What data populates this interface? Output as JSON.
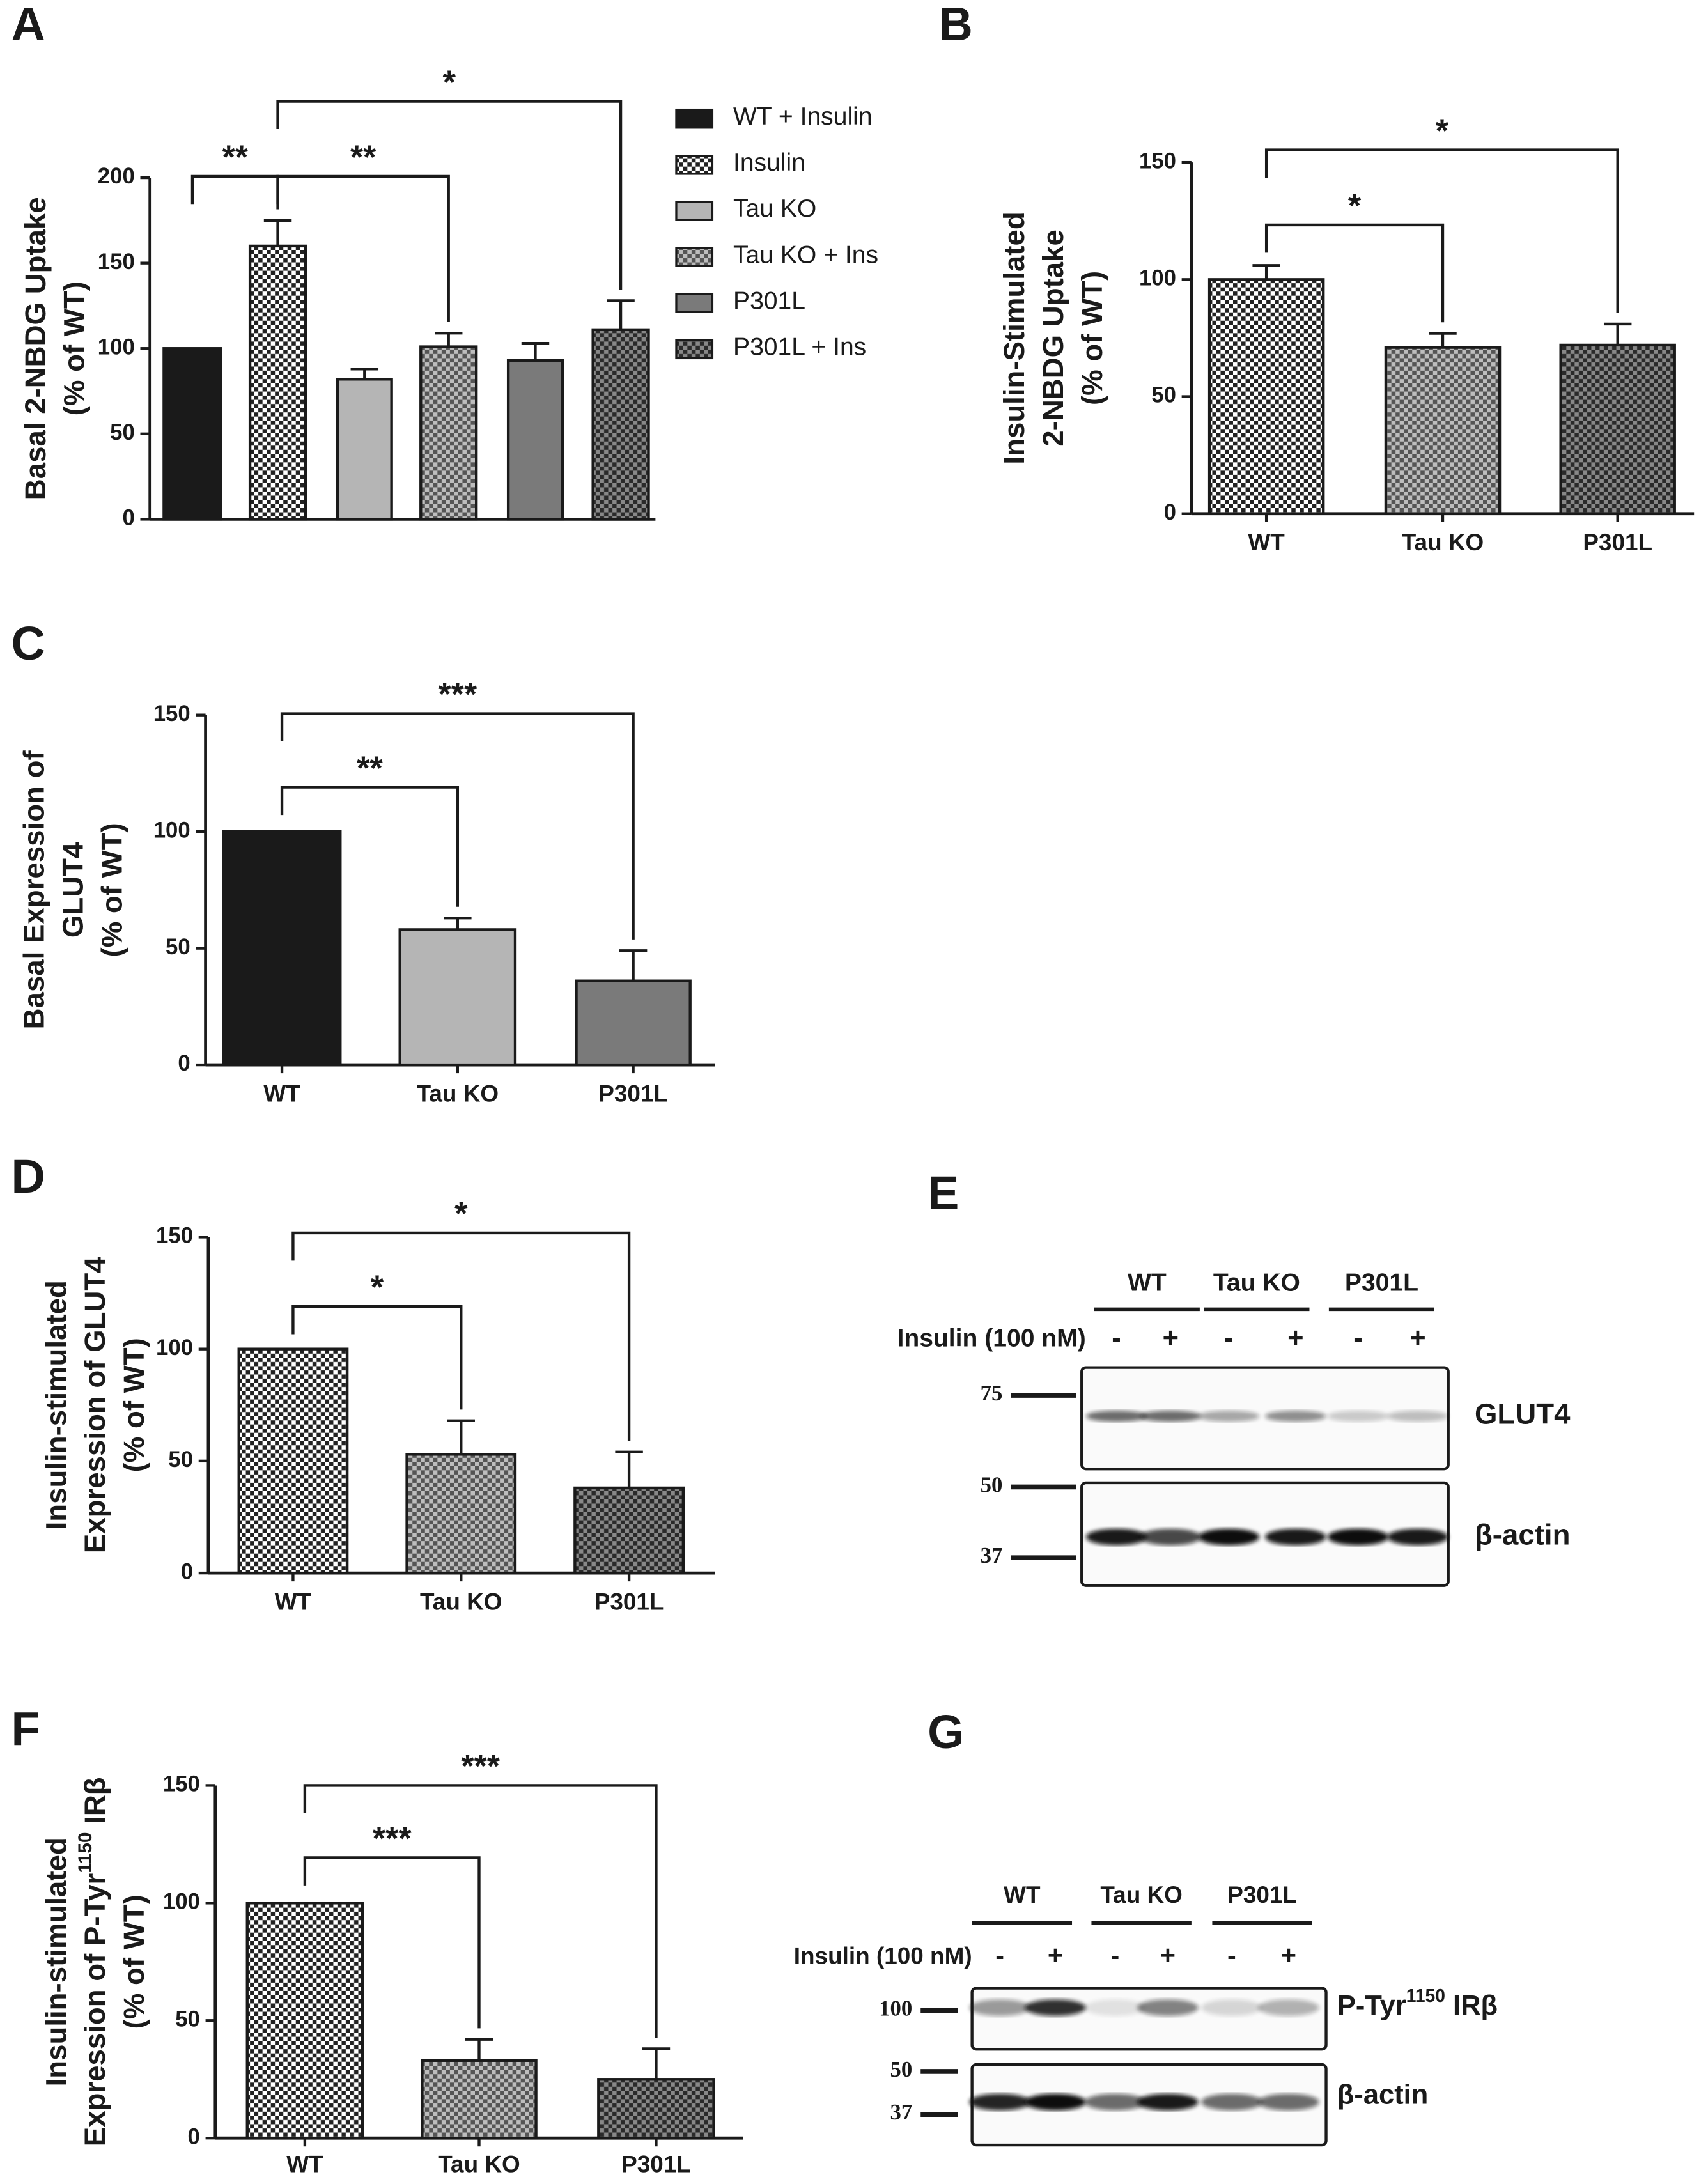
{
  "chart_data": [
    {
      "panel": "A",
      "type": "bar",
      "ylabel": [
        "Basal 2-NBDG Uptake",
        "(% of WT)"
      ],
      "series": [
        {
          "name": "WT + Insulin",
          "color": "#1a1a1a",
          "values": [
            100
          ]
        },
        {
          "name": "Insulin",
          "pattern": "chk-white",
          "values": [
            160
          ],
          "errors": [
            15
          ]
        },
        {
          "name": "Tau KO",
          "color": "#b5b5b5",
          "values": [
            82
          ],
          "errors": [
            6
          ]
        },
        {
          "name": "Tau KO + Ins",
          "pattern": "chk-gray",
          "values": [
            101
          ],
          "errors": [
            8
          ]
        },
        {
          "name": "P301L",
          "color": "#7a7a7a",
          "values": [
            93
          ],
          "errors": [
            10
          ]
        },
        {
          "name": "P301L + Ins",
          "pattern": "chk-dark",
          "values": [
            111
          ],
          "errors": [
            17
          ]
        }
      ],
      "ylim": [
        0,
        200
      ],
      "yticks": [
        0,
        50,
        100,
        150,
        200
      ],
      "annotations": [
        "**",
        "**",
        "*"
      ]
    },
    {
      "panel": "B",
      "type": "bar",
      "ylabel": [
        "Insulin-Stimulated",
        "2-NBDG Uptake",
        "(% of WT)"
      ],
      "categories": [
        "WT",
        "Tau KO",
        "P301L"
      ],
      "values": [
        100,
        71,
        72
      ],
      "errors": [
        6,
        6,
        9
      ],
      "patterns": [
        "chk-white",
        "chk-gray",
        "chk-dark"
      ],
      "ylim": [
        0,
        150
      ],
      "yticks": [
        0,
        50,
        100,
        150
      ],
      "annotations": [
        "*",
        "*"
      ]
    },
    {
      "panel": "C",
      "type": "bar",
      "ylabel": [
        "Basal Expression of",
        "GLUT4",
        "(% of WT)"
      ],
      "categories": [
        "WT",
        "Tau KO",
        "P301L"
      ],
      "values": [
        100,
        58,
        36
      ],
      "errors": [
        null,
        5,
        13
      ],
      "colors": [
        "#1a1a1a",
        "#b5b5b5",
        "#7a7a7a"
      ],
      "ylim": [
        0,
        150
      ],
      "yticks": [
        0,
        50,
        100,
        150
      ],
      "annotations": [
        "**",
        "***"
      ]
    },
    {
      "panel": "D",
      "type": "bar",
      "ylabel": [
        "Insulin-stimulated",
        "Expression of GLUT4",
        "(% of WT)"
      ],
      "categories": [
        "WT",
        "Tau KO",
        "P301L"
      ],
      "values": [
        100,
        53,
        38
      ],
      "errors": [
        null,
        15,
        16
      ],
      "patterns": [
        "chk-white",
        "chk-gray",
        "chk-dark"
      ],
      "ylim": [
        0,
        150
      ],
      "yticks": [
        0,
        50,
        100,
        150
      ],
      "annotations": [
        "*",
        "*"
      ]
    },
    {
      "panel": "F",
      "type": "bar",
      "ylabel": [
        "Insulin-stimulated",
        [
          "Expression of P-Tyr",
          "1150",
          " IRβ"
        ],
        "(% of WT)"
      ],
      "categories": [
        "WT",
        "Tau KO",
        "P301L"
      ],
      "values": [
        100,
        33,
        25
      ],
      "errors": [
        null,
        9,
        13
      ],
      "patterns": [
        "chk-white",
        "chk-gray",
        "chk-dark"
      ],
      "ylim": [
        0,
        150
      ],
      "yticks": [
        0,
        50,
        100,
        150
      ],
      "annotations": [
        "***",
        "***"
      ]
    }
  ],
  "blots": [
    {
      "panel": "E",
      "groups": [
        "WT",
        "Tau KO",
        "P301L"
      ],
      "treatment": "Insulin (100 nM)",
      "signs": [
        "-",
        "+",
        "-",
        "+",
        "-",
        "+"
      ],
      "markers": [
        75,
        50,
        37
      ],
      "bands": [
        "GLUT4",
        "β-actin"
      ]
    },
    {
      "panel": "G",
      "groups": [
        "WT",
        "Tau KO",
        "P301L"
      ],
      "treatment": "Insulin (100 nM)",
      "signs": [
        "-",
        "+",
        "-",
        "+",
        "-",
        "+"
      ],
      "markers": [
        100,
        50,
        37
      ],
      "bands": [
        [
          "P-Tyr",
          "1150",
          " IRβ"
        ],
        "β-actin"
      ]
    }
  ]
}
